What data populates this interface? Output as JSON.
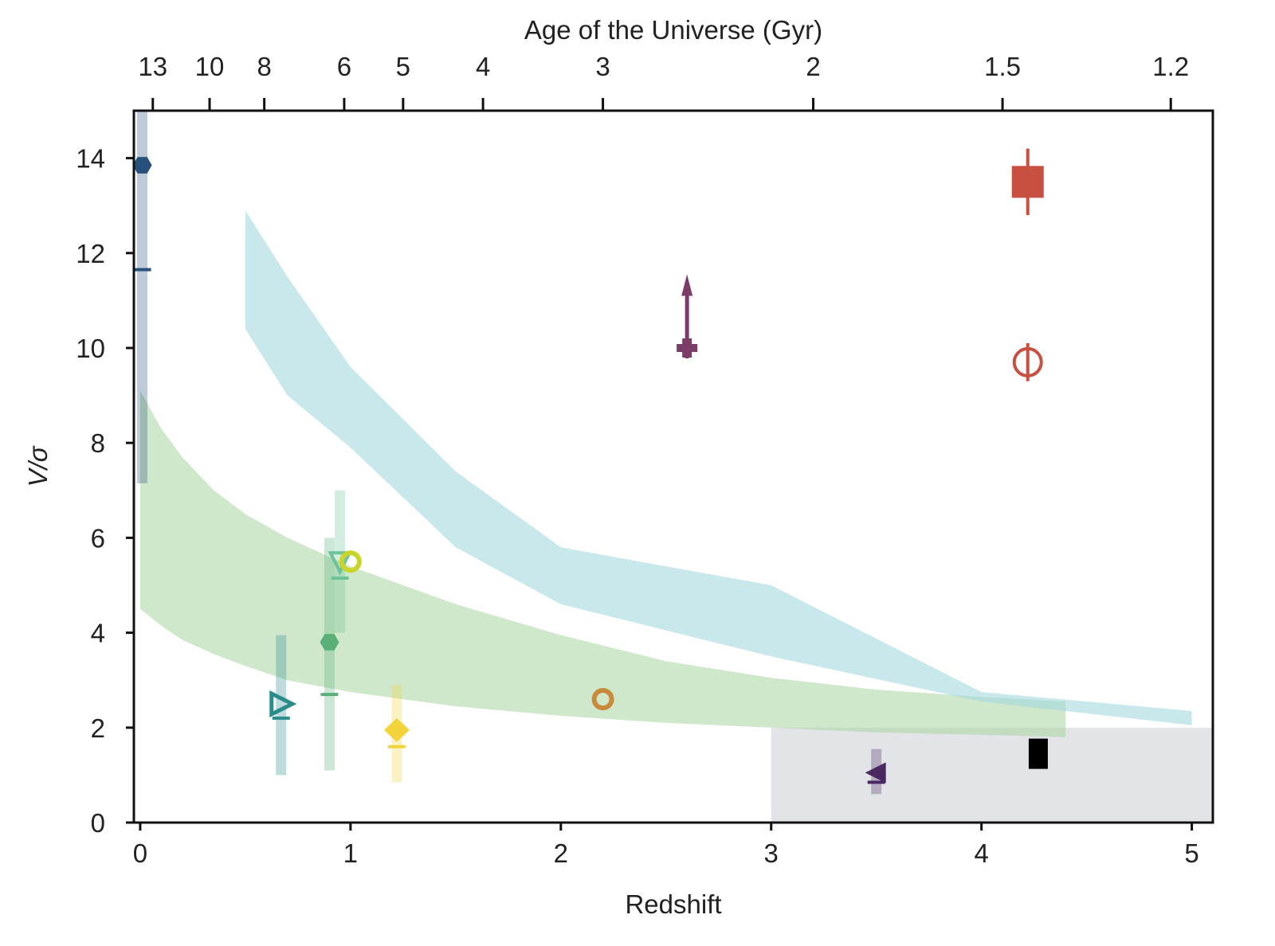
{
  "chart_data": {
    "type": "scatter",
    "xlabel": "Redshift",
    "ylabel": "V/σ",
    "top_xlabel": "Age of the Universe (Gyr)",
    "xlim": [
      -0.03,
      5.1
    ],
    "ylim": [
      0,
      15
    ],
    "x_ticks": [
      0,
      1,
      2,
      3,
      4,
      5
    ],
    "y_ticks": [
      0,
      2,
      4,
      6,
      8,
      10,
      12,
      14
    ],
    "top_ticks": [
      {
        "label": "13",
        "z": 0.06
      },
      {
        "label": "10",
        "z": 0.33
      },
      {
        "label": "8",
        "z": 0.59
      },
      {
        "label": "6",
        "z": 0.97
      },
      {
        "label": "5",
        "z": 1.25
      },
      {
        "label": "4",
        "z": 1.63
      },
      {
        "label": "3",
        "z": 2.2
      },
      {
        "label": "2",
        "z": 3.2
      },
      {
        "label": "1.5",
        "z": 4.1
      },
      {
        "label": "1.2",
        "z": 4.9
      }
    ],
    "grid": false,
    "legend": "none",
    "bands": [
      {
        "color": "#a8d4a0",
        "opacity": 0.55,
        "x": [
          0,
          0.1,
          0.2,
          0.35,
          0.5,
          0.7,
          1.0,
          1.5,
          2.0,
          2.5,
          3.0,
          3.5,
          4.0,
          4.4
        ],
        "lower": [
          4.5,
          4.15,
          3.85,
          3.55,
          3.3,
          3.0,
          2.75,
          2.45,
          2.25,
          2.1,
          2.0,
          1.9,
          1.85,
          1.8
        ],
        "upper": [
          9.1,
          8.3,
          7.7,
          7.0,
          6.5,
          6.0,
          5.4,
          4.6,
          3.95,
          3.4,
          3.05,
          2.8,
          2.65,
          2.55
        ]
      },
      {
        "color": "#a4d8e0",
        "opacity": 0.6,
        "x": [
          0.5,
          0.7,
          1.0,
          1.5,
          2.0,
          3.0,
          4.0,
          5.0
        ],
        "lower": [
          10.4,
          9.0,
          7.9,
          5.8,
          4.6,
          3.5,
          2.55,
          2.05
        ],
        "upper": [
          12.9,
          11.5,
          9.6,
          7.4,
          5.8,
          5.0,
          2.75,
          2.35
        ]
      }
    ],
    "shaded_region": {
      "x": [
        3.0,
        5.1
      ],
      "y": [
        0,
        2
      ],
      "color": "#e2e4e8"
    },
    "points": [
      {
        "x": 0.01,
        "y": 13.85,
        "yerr": [
          6.7,
          1.15
        ],
        "marker": "hexagon",
        "color": "#27507a",
        "median": 11.65
      },
      {
        "x": 0.67,
        "y": 2.5,
        "yerr": [
          1.5,
          1.45
        ],
        "marker": "triangle-right",
        "color": "#2b8c8c",
        "median": 2.2
      },
      {
        "x": 0.9,
        "y": 3.8,
        "yerr": [
          2.7,
          2.2
        ],
        "marker": "hexagon",
        "color": "#5bb07a",
        "median": 2.7
      },
      {
        "x": 0.95,
        "y": 5.5,
        "yerr": [
          1.5,
          1.5
        ],
        "marker": "triangle-down",
        "color": "#6cc39a",
        "median": 5.15
      },
      {
        "x": 1.0,
        "y": 5.5,
        "marker": "circle-open",
        "color": "#c9d42a"
      },
      {
        "x": 1.22,
        "y": 1.95,
        "yerr": [
          1.1,
          0.95
        ],
        "marker": "diamond",
        "color": "#f2d43a",
        "median": 1.6
      },
      {
        "x": 2.2,
        "y": 2.6,
        "marker": "circle-open",
        "color": "#c98a3c"
      },
      {
        "x": 2.6,
        "y": 10.0,
        "marker": "plus",
        "color": "#7b3c68",
        "lower_limit": true
      },
      {
        "x": 3.5,
        "y": 1.05,
        "yerr": [
          0.45,
          0.5
        ],
        "marker": "triangle-left",
        "color": "#4a2860",
        "median": 0.85
      },
      {
        "x": 4.22,
        "y": 13.5,
        "yerr": [
          0.7,
          0.7
        ],
        "marker": "square",
        "color": "#c85040"
      },
      {
        "x": 4.22,
        "y": 9.7,
        "yerr": [
          0.4,
          0.4
        ],
        "marker": "circle-open-split",
        "color": "#c85040"
      },
      {
        "x": 4.27,
        "y": 1.45,
        "marker": "rect-filled",
        "color": "#000000"
      }
    ]
  }
}
